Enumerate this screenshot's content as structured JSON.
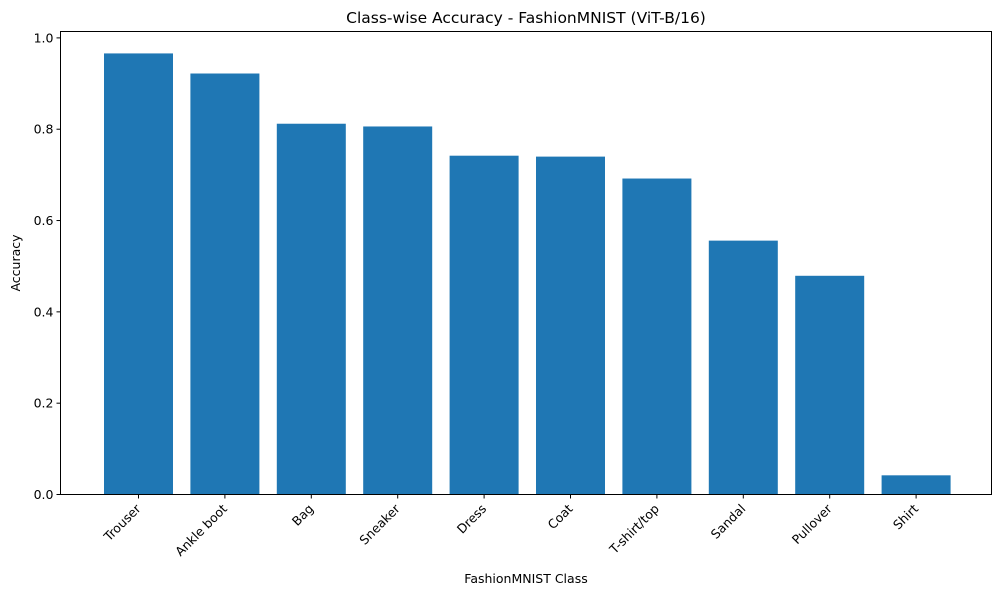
{
  "chart_data": {
    "type": "bar",
    "title": "Class-wise Accuracy - FashionMNIST (ViT-B/16)",
    "xlabel": "FashionMNIST Class",
    "ylabel": "Accuracy",
    "categories": [
      "Trouser",
      "Ankle boot",
      "Bag",
      "Sneaker",
      "Dress",
      "Coat",
      "T-shirt/top",
      "Sandal",
      "Pullover",
      "Shirt"
    ],
    "values": [
      0.966,
      0.922,
      0.812,
      0.806,
      0.742,
      0.74,
      0.692,
      0.556,
      0.479,
      0.042
    ],
    "ylim": [
      0,
      1.0
    ],
    "yticks": [
      0.0,
      0.2,
      0.4,
      0.6,
      0.8,
      1.0
    ],
    "ytick_labels": [
      "0.0",
      "0.2",
      "0.4",
      "0.6",
      "0.8",
      "1.0"
    ],
    "bar_color": "#1f77b4",
    "grid": false
  }
}
